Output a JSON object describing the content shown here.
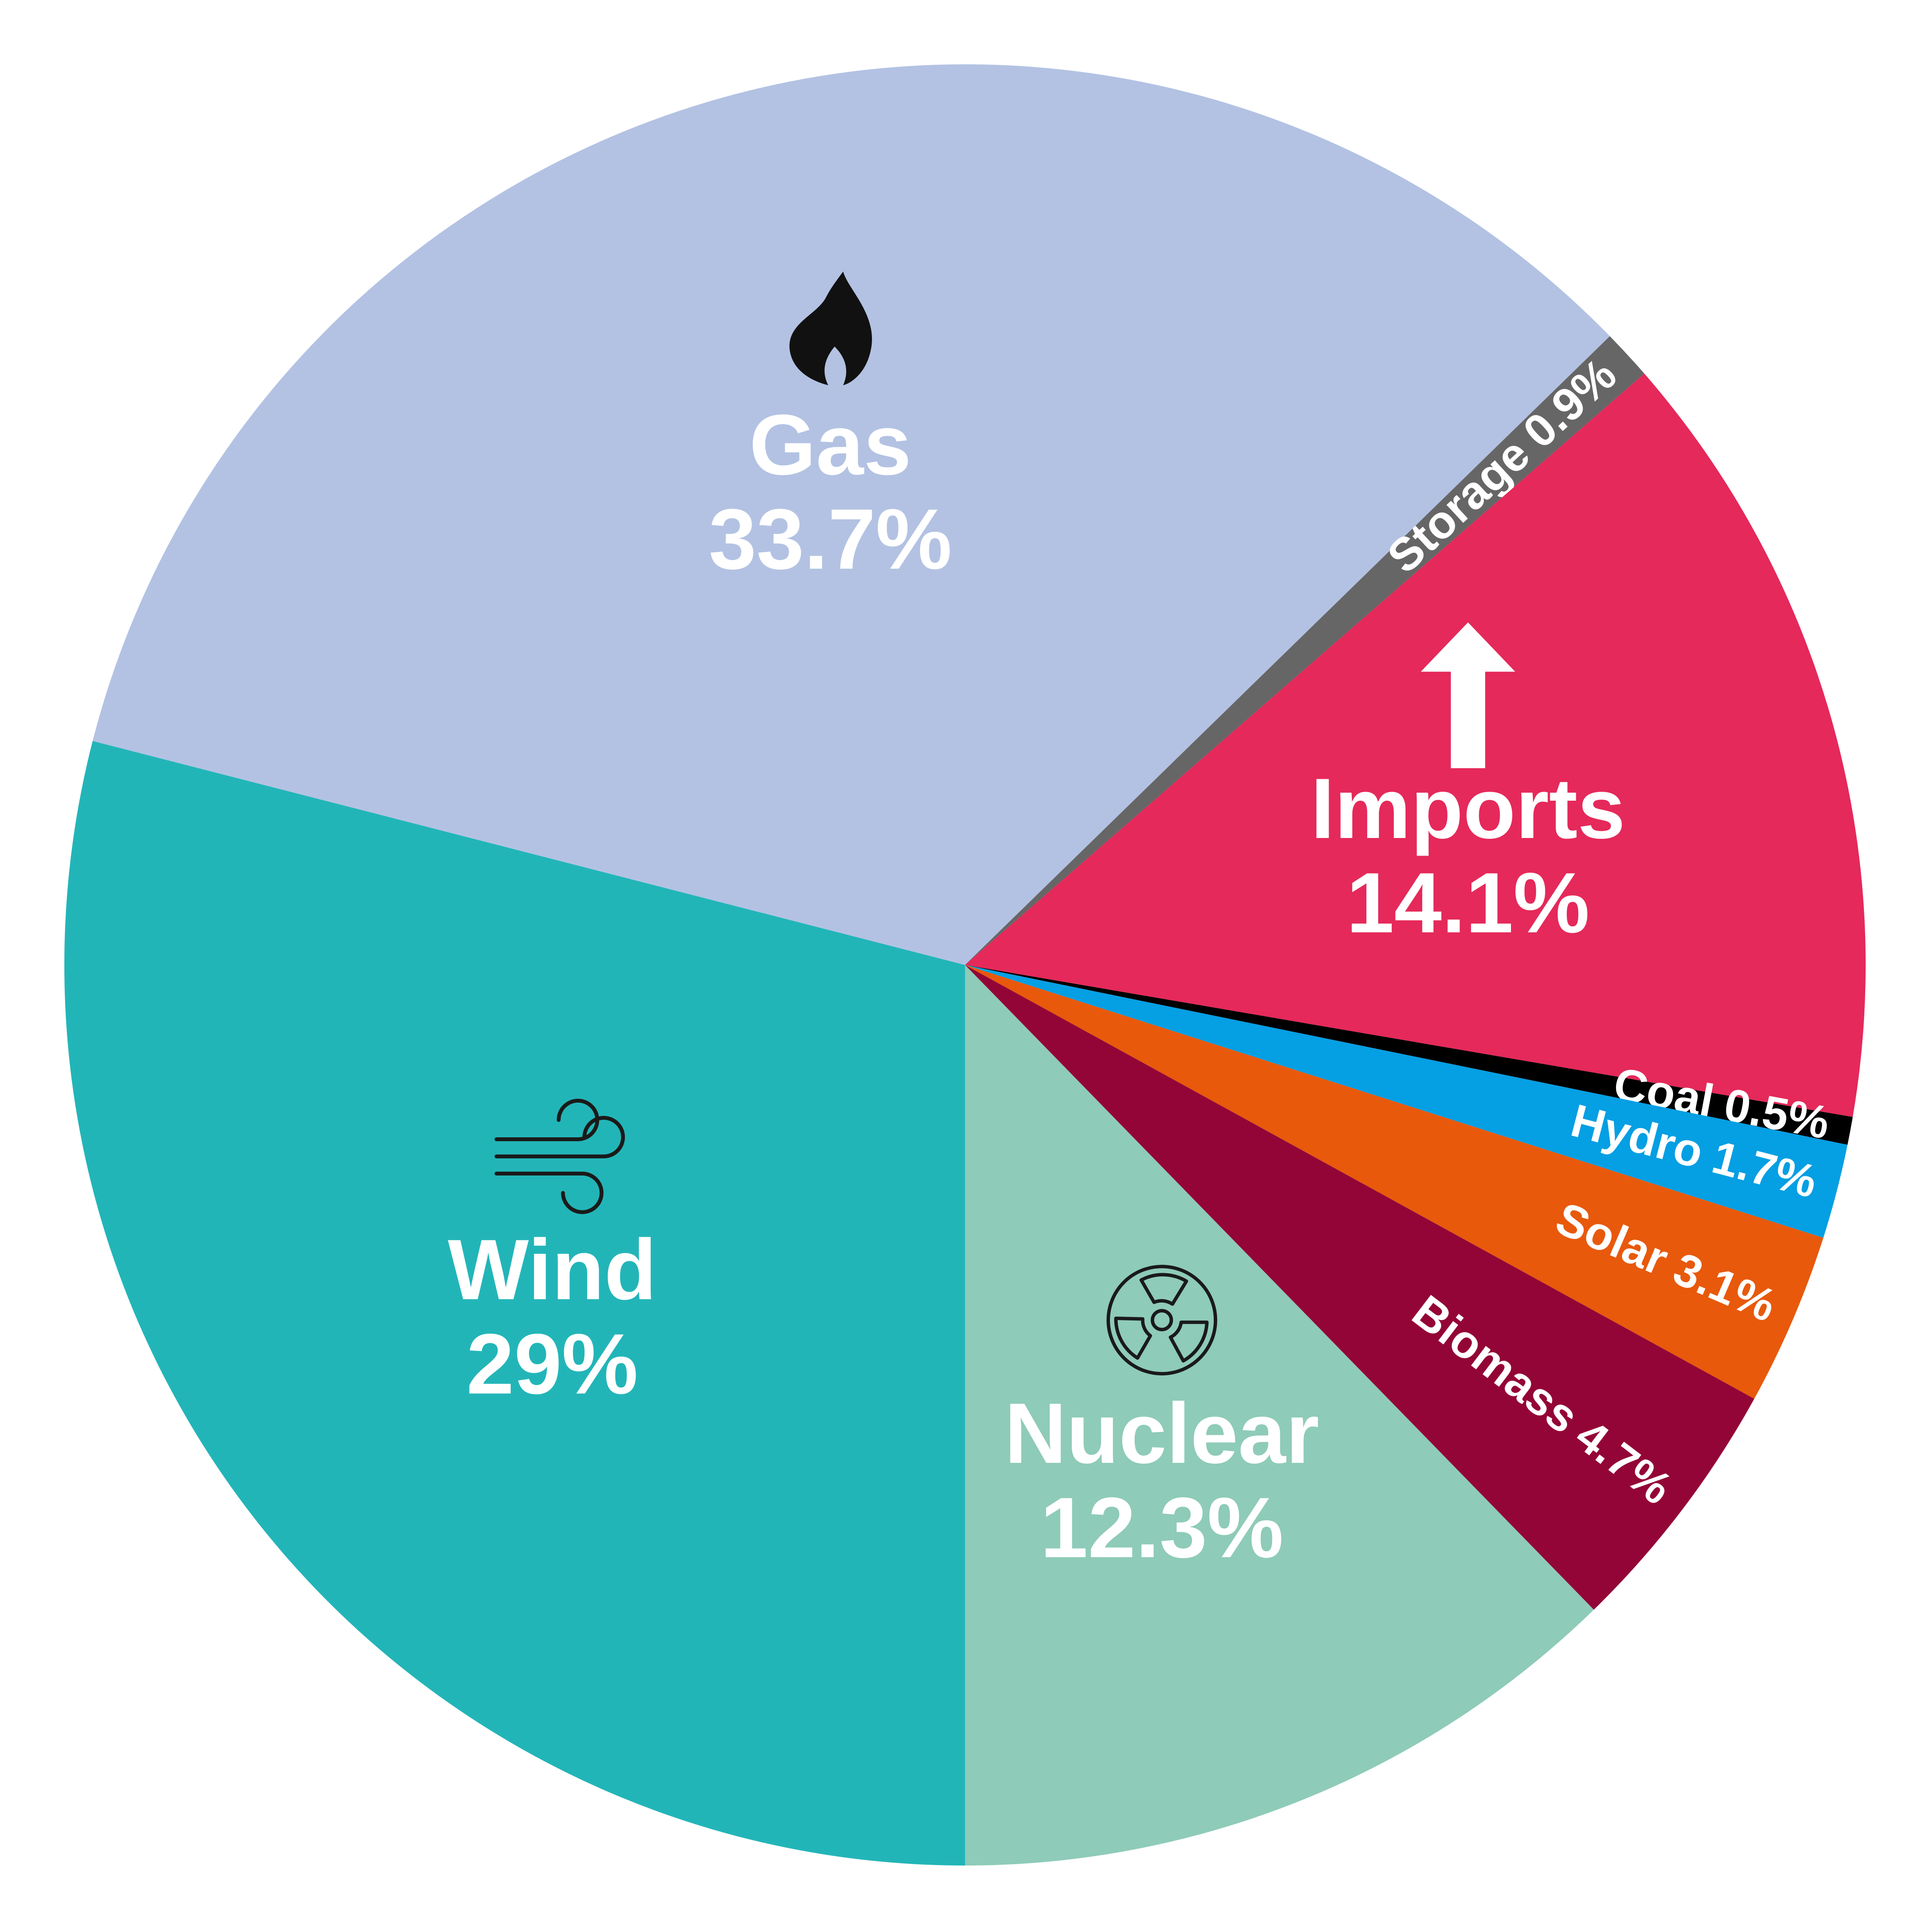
{
  "chart_data": {
    "type": "pie",
    "categories": [
      "Wind",
      "Gas",
      "Storage",
      "Imports",
      "Coal",
      "Hydro",
      "Solar",
      "Biomass",
      "Nuclear"
    ],
    "values": [
      29,
      33.7,
      0.9,
      14.1,
      0.5,
      1.7,
      3.1,
      4.7,
      12.3
    ],
    "value_labels": [
      "29%",
      "33.7%",
      "0.9%",
      "14.1%",
      "0.5%",
      "1.7%",
      "3.1%",
      "4.7%",
      "12.3%"
    ],
    "colors": [
      "#22b5b8",
      "#b3c2e3",
      "#666666",
      "#e5295a",
      "#000000",
      "#059fe3",
      "#e8590c",
      "#930536",
      "#8ecbb8"
    ]
  }
}
